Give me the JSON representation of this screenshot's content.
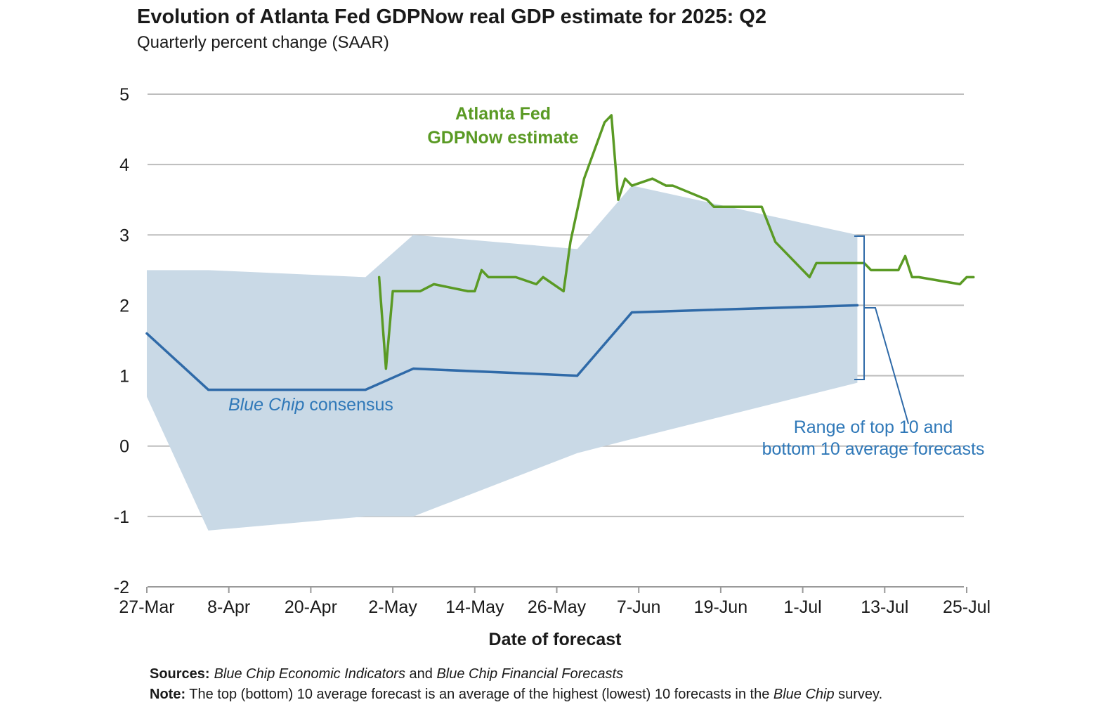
{
  "chart_data": {
    "type": "line",
    "title": "Evolution of Atlanta Fed GDPNow real GDP estimate for 2025: Q2",
    "subtitle": "Quarterly percent change (SAAR)",
    "xlabel": "Date of forecast",
    "ylabel": "",
    "ylim": [
      -2,
      5
    ],
    "yticks": [
      -2,
      -1,
      0,
      1,
      2,
      3,
      4,
      5
    ],
    "x_range": [
      "2025-03-27",
      "2025-07-25"
    ],
    "xticks": [
      {
        "date": "2025-03-27",
        "label": "27-Mar"
      },
      {
        "date": "2025-04-08",
        "label": "8-Apr"
      },
      {
        "date": "2025-04-20",
        "label": "20-Apr"
      },
      {
        "date": "2025-05-02",
        "label": "2-May"
      },
      {
        "date": "2025-05-14",
        "label": "14-May"
      },
      {
        "date": "2025-05-26",
        "label": "26-May"
      },
      {
        "date": "2025-06-07",
        "label": "7-Jun"
      },
      {
        "date": "2025-06-19",
        "label": "19-Jun"
      },
      {
        "date": "2025-07-01",
        "label": "1-Jul"
      },
      {
        "date": "2025-07-13",
        "label": "13-Jul"
      },
      {
        "date": "2025-07-25",
        "label": "25-Jul"
      }
    ],
    "grid": true,
    "series": [
      {
        "name": "Atlanta Fed GDPNow estimate",
        "color": "#5a9a24",
        "points": [
          [
            "2025-04-30",
            2.4
          ],
          [
            "2025-05-01",
            1.1
          ],
          [
            "2025-05-02",
            2.2
          ],
          [
            "2025-05-06",
            2.2
          ],
          [
            "2025-05-08",
            2.3
          ],
          [
            "2025-05-13",
            2.2
          ],
          [
            "2025-05-14",
            2.2
          ],
          [
            "2025-05-15",
            2.5
          ],
          [
            "2025-05-16",
            2.4
          ],
          [
            "2025-05-20",
            2.4
          ],
          [
            "2025-05-23",
            2.3
          ],
          [
            "2025-05-24",
            2.4
          ],
          [
            "2025-05-27",
            2.2
          ],
          [
            "2025-05-28",
            2.9
          ],
          [
            "2025-05-30",
            3.8
          ],
          [
            "2025-06-02",
            4.6
          ],
          [
            "2025-06-03",
            4.7
          ],
          [
            "2025-06-04",
            3.5
          ],
          [
            "2025-06-05",
            3.8
          ],
          [
            "2025-06-06",
            3.7
          ],
          [
            "2025-06-09",
            3.8
          ],
          [
            "2025-06-11",
            3.7
          ],
          [
            "2025-06-12",
            3.7
          ],
          [
            "2025-06-17",
            3.5
          ],
          [
            "2025-06-18",
            3.4
          ],
          [
            "2025-06-25",
            3.4
          ],
          [
            "2025-06-27",
            2.9
          ],
          [
            "2025-07-02",
            2.4
          ],
          [
            "2025-07-03",
            2.6
          ],
          [
            "2025-07-09",
            2.6
          ],
          [
            "2025-07-10",
            2.6
          ],
          [
            "2025-07-11",
            2.5
          ],
          [
            "2025-07-15",
            2.5
          ],
          [
            "2025-07-16",
            2.7
          ],
          [
            "2025-07-17",
            2.4
          ],
          [
            "2025-07-18",
            2.4
          ],
          [
            "2025-07-24",
            2.3
          ],
          [
            "2025-07-25",
            2.4
          ],
          [
            "2025-07-26",
            2.4
          ]
        ]
      },
      {
        "name": "Blue Chip consensus",
        "color": "#2f6aa8",
        "points": [
          [
            "2025-03-27",
            1.6
          ],
          [
            "2025-04-05",
            0.8
          ],
          [
            "2025-04-28",
            0.8
          ],
          [
            "2025-05-05",
            1.1
          ],
          [
            "2025-05-29",
            1.0
          ],
          [
            "2025-06-06",
            1.9
          ],
          [
            "2025-07-09",
            2.0
          ]
        ]
      }
    ],
    "range_band": {
      "name": "Range of top 10 and bottom 10 average forecasts",
      "color": "#c9d9e6",
      "upper": [
        [
          "2025-03-27",
          2.5
        ],
        [
          "2025-04-05",
          2.5
        ],
        [
          "2025-04-28",
          2.4
        ],
        [
          "2025-05-05",
          3.0
        ],
        [
          "2025-05-29",
          2.8
        ],
        [
          "2025-06-06",
          3.7
        ],
        [
          "2025-07-09",
          3.0
        ]
      ],
      "lower": [
        [
          "2025-03-27",
          0.7
        ],
        [
          "2025-04-05",
          -1.2
        ],
        [
          "2025-04-28",
          -1.0
        ],
        [
          "2025-05-05",
          -1.0
        ],
        [
          "2025-05-29",
          -0.1
        ],
        [
          "2025-06-06",
          0.1
        ],
        [
          "2025-07-09",
          0.9
        ]
      ]
    },
    "annotations": {
      "gdpnow_line1": "Atlanta Fed",
      "gdpnow_line2": "GDPNow estimate",
      "bluechip_italic": "Blue Chip",
      "bluechip_rest": " consensus",
      "range_line1": "Range of top 10 and",
      "range_line2": "bottom 10 average forecasts"
    }
  },
  "footer": {
    "sources_label": "Sources:",
    "sources_italic1": "Blue Chip Economic Indicators",
    "sources_and": " and ",
    "sources_italic2": "Blue Chip Financial Forecasts",
    "note_label": "Note:",
    "note_text": " The top (bottom) 10 average forecast is an average of the highest (lowest) 10 forecasts in the ",
    "note_italic": "Blue Chip",
    "note_end": " survey."
  }
}
